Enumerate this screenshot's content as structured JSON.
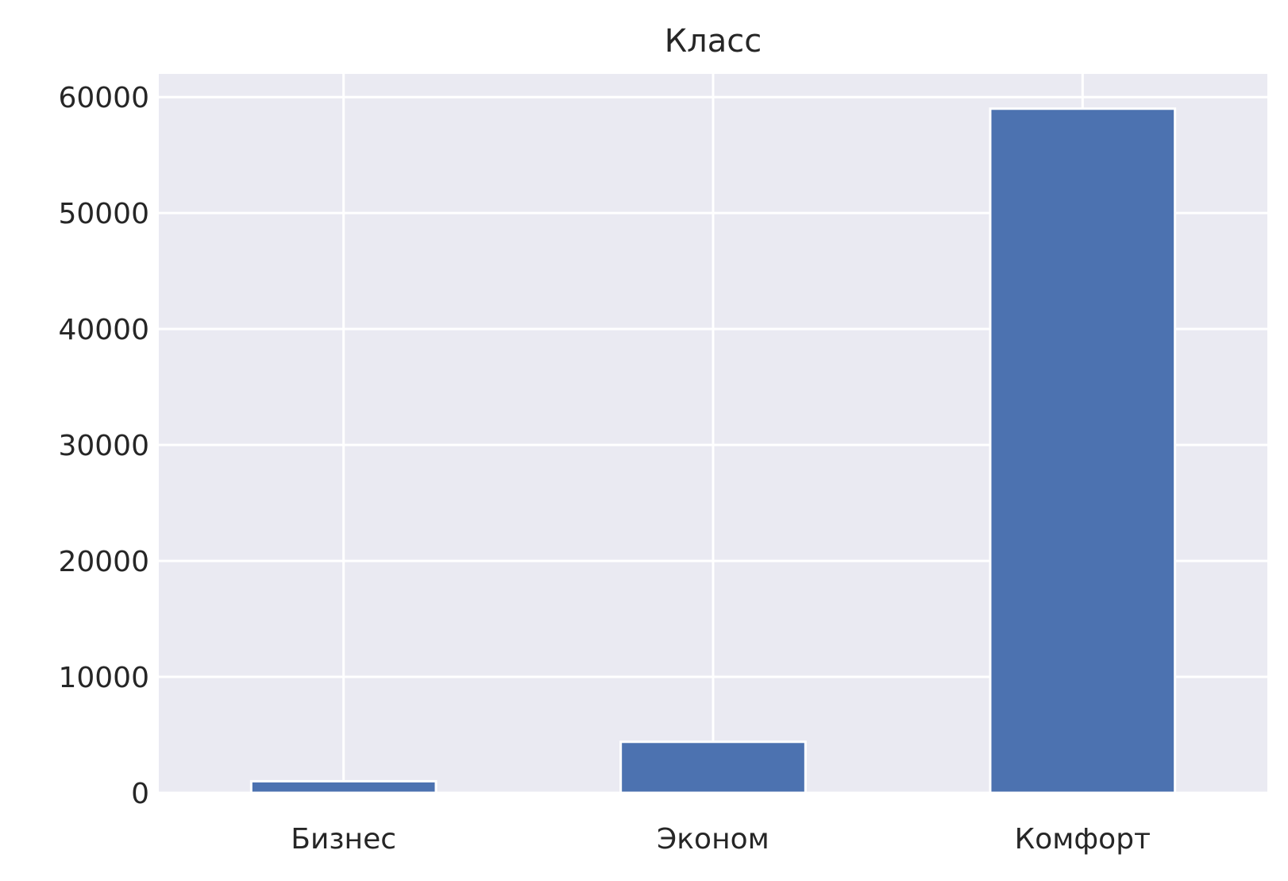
{
  "chart_data": {
    "type": "bar",
    "title": "Класс",
    "xlabel": "",
    "ylabel": "",
    "categories": [
      "Бизнес",
      "Эконом",
      "Комфорт"
    ],
    "values": [
      1000,
      4400,
      59000
    ],
    "ylim": [
      0,
      62000
    ],
    "yticks": [
      0,
      10000,
      20000,
      30000,
      40000,
      50000,
      60000
    ],
    "ytick_labels": [
      "0",
      "10000",
      "20000",
      "30000",
      "40000",
      "50000",
      "60000"
    ],
    "grid": true,
    "legend": "none",
    "colors": {
      "bar": "#4c72b0",
      "plot_background": "#eaeaf2",
      "grid": "#ffffff",
      "text": "#262626"
    }
  }
}
